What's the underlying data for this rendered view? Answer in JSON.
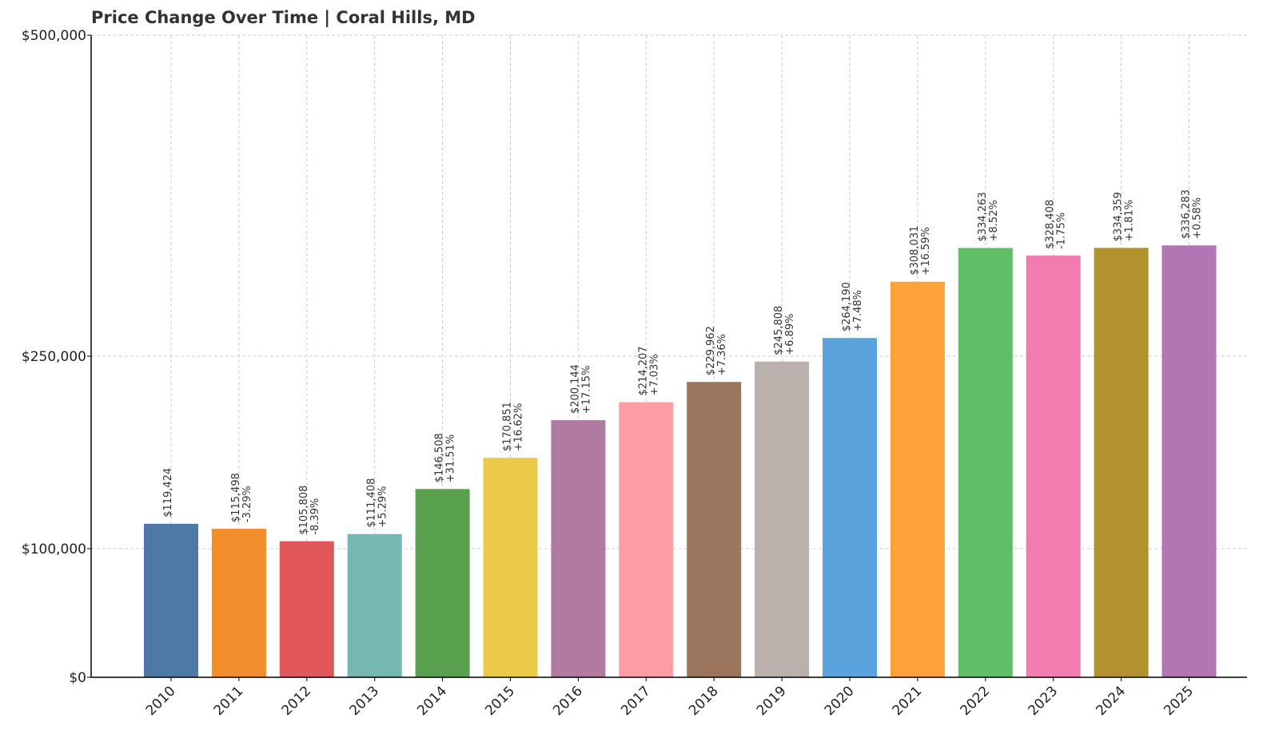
{
  "chart_data": {
    "type": "bar",
    "title": "Price Change Over Time | Coral Hills, MD",
    "xlabel": "",
    "ylabel": "",
    "categories": [
      "2010",
      "2011",
      "2012",
      "2013",
      "2014",
      "2015",
      "2016",
      "2017",
      "2018",
      "2019",
      "2020",
      "2021",
      "2022",
      "2023",
      "2024",
      "2025"
    ],
    "values": [
      119424,
      115498,
      105808,
      111408,
      146508,
      170851,
      200144,
      214207,
      229962,
      245808,
      264190,
      308031,
      334263,
      328408,
      334359,
      336283
    ],
    "value_labels": [
      "$119,424",
      "$115,498",
      "$105,808",
      "$111,408",
      "$146,508",
      "$170,851",
      "$200,144",
      "$214,207",
      "$229,962",
      "$245,808",
      "$264,190",
      "$308,031",
      "$334,263",
      "$328,408",
      "$334,359",
      "$336,283"
    ],
    "change_labels": [
      "",
      "-3.29%",
      "-8.39%",
      "+5.29%",
      "+31.51%",
      "+16.62%",
      "+17.15%",
      "+7.03%",
      "+7.36%",
      "+6.89%",
      "+7.48%",
      "+16.59%",
      "+8.52%",
      "-1.75%",
      "+1.81%",
      "+0.58%"
    ],
    "colors": [
      "#4e79a7",
      "#f28e2b",
      "#e15759",
      "#76b7b2",
      "#59a14f",
      "#edc948",
      "#b07aa1",
      "#ff9da7",
      "#9c755f",
      "#bab0ac",
      "#5ba3dc",
      "#ffa23a",
      "#60bf66",
      "#f17cb0",
      "#b2912f",
      "#b276b2"
    ],
    "yticks": [
      0,
      100000,
      250000,
      500000
    ],
    "ytick_labels": [
      "$0",
      "$100,000",
      "$250,000",
      "$500,000"
    ],
    "ylim": [
      0,
      500000
    ],
    "grid": true,
    "legend": "none"
  }
}
